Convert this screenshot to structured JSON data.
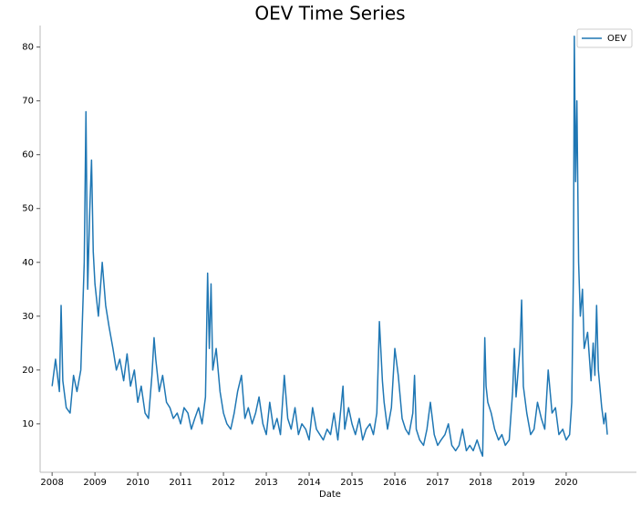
{
  "chart_data": {
    "type": "line",
    "title": "OEV Time Series",
    "x_label": "Date",
    "xlim": [
      2007.72,
      2021.64
    ],
    "ylim": [
      1,
      84
    ],
    "xticks": [
      2008,
      2009,
      2010,
      2011,
      2012,
      2013,
      2014,
      2015,
      2016,
      2017,
      2018,
      2019,
      2020
    ],
    "yticks": [
      10,
      20,
      30,
      40,
      50,
      60,
      70,
      80
    ],
    "grid": false,
    "legend": "upper right",
    "x": [
      2008.0,
      2008.08,
      2008.17,
      2008.21,
      2008.25,
      2008.33,
      2008.42,
      2008.5,
      2008.58,
      2008.67,
      2008.75,
      2008.79,
      2008.83,
      2008.88,
      2008.92,
      2008.96,
      2009.0,
      2009.08,
      2009.17,
      2009.25,
      2009.33,
      2009.42,
      2009.5,
      2009.58,
      2009.67,
      2009.75,
      2009.83,
      2009.92,
      2010.0,
      2010.08,
      2010.17,
      2010.25,
      2010.33,
      2010.38,
      2010.42,
      2010.5,
      2010.58,
      2010.67,
      2010.75,
      2010.83,
      2010.92,
      2011.0,
      2011.08,
      2011.17,
      2011.25,
      2011.33,
      2011.42,
      2011.5,
      2011.58,
      2011.63,
      2011.67,
      2011.71,
      2011.75,
      2011.83,
      2011.92,
      2012.0,
      2012.08,
      2012.17,
      2012.25,
      2012.33,
      2012.42,
      2012.5,
      2012.58,
      2012.67,
      2012.75,
      2012.83,
      2012.92,
      2013.0,
      2013.08,
      2013.17,
      2013.25,
      2013.33,
      2013.42,
      2013.5,
      2013.58,
      2013.67,
      2013.75,
      2013.83,
      2013.92,
      2014.0,
      2014.08,
      2014.17,
      2014.25,
      2014.33,
      2014.42,
      2014.5,
      2014.58,
      2014.67,
      2014.79,
      2014.83,
      2014.92,
      2015.0,
      2015.08,
      2015.17,
      2015.25,
      2015.33,
      2015.42,
      2015.5,
      2015.58,
      2015.64,
      2015.71,
      2015.75,
      2015.83,
      2015.92,
      2016.0,
      2016.08,
      2016.17,
      2016.25,
      2016.33,
      2016.42,
      2016.46,
      2016.5,
      2016.58,
      2016.67,
      2016.75,
      2016.83,
      2016.92,
      2017.0,
      2017.08,
      2017.17,
      2017.25,
      2017.33,
      2017.42,
      2017.5,
      2017.58,
      2017.67,
      2017.75,
      2017.83,
      2017.92,
      2018.0,
      2018.05,
      2018.1,
      2018.13,
      2018.17,
      2018.25,
      2018.33,
      2018.42,
      2018.5,
      2018.58,
      2018.67,
      2018.75,
      2018.79,
      2018.83,
      2018.92,
      2018.96,
      2019.0,
      2019.08,
      2019.17,
      2019.25,
      2019.33,
      2019.42,
      2019.5,
      2019.58,
      2019.67,
      2019.75,
      2019.83,
      2019.92,
      2020.0,
      2020.08,
      2020.13,
      2020.17,
      2020.19,
      2020.22,
      2020.25,
      2020.29,
      2020.33,
      2020.38,
      2020.42,
      2020.5,
      2020.58,
      2020.63,
      2020.67,
      2020.71,
      2020.75,
      2020.83,
      2020.88,
      2020.92,
      2020.96
    ],
    "series": [
      {
        "name": "OEV",
        "color": "#1f77b4",
        "values": [
          17,
          22,
          16,
          32,
          18,
          13,
          12,
          19,
          16,
          20,
          40,
          68,
          35,
          50,
          59,
          42,
          36,
          30,
          40,
          32,
          28,
          24,
          20,
          22,
          18,
          23,
          17,
          20,
          14,
          17,
          12,
          11,
          19,
          26,
          22,
          16,
          19,
          14,
          13,
          11,
          12,
          10,
          13,
          12,
          9,
          11,
          13,
          10,
          15,
          38,
          24,
          36,
          20,
          24,
          16,
          12,
          10,
          9,
          12,
          16,
          19,
          11,
          13,
          10,
          12,
          15,
          10,
          8,
          14,
          9,
          11,
          8,
          19,
          11,
          9,
          13,
          8,
          10,
          9,
          7,
          13,
          9,
          8,
          7,
          9,
          8,
          12,
          7,
          17,
          9,
          13,
          10,
          8,
          11,
          7,
          9,
          10,
          8,
          12,
          29,
          18,
          14,
          9,
          13,
          24,
          19,
          11,
          9,
          8,
          12,
          19,
          9,
          7,
          6,
          9,
          14,
          8,
          6,
          7,
          8,
          10,
          6,
          5,
          6,
          9,
          5,
          6,
          5,
          7,
          5,
          4,
          26,
          17,
          14,
          12,
          9,
          7,
          8,
          6,
          7,
          16,
          24,
          15,
          24,
          33,
          17,
          12,
          8,
          9,
          14,
          11,
          9,
          20,
          12,
          13,
          8,
          9,
          7,
          8,
          14,
          39,
          82,
          55,
          70,
          40,
          30,
          35,
          24,
          27,
          18,
          25,
          19,
          32,
          20,
          13,
          10,
          12,
          8
        ]
      }
    ]
  }
}
